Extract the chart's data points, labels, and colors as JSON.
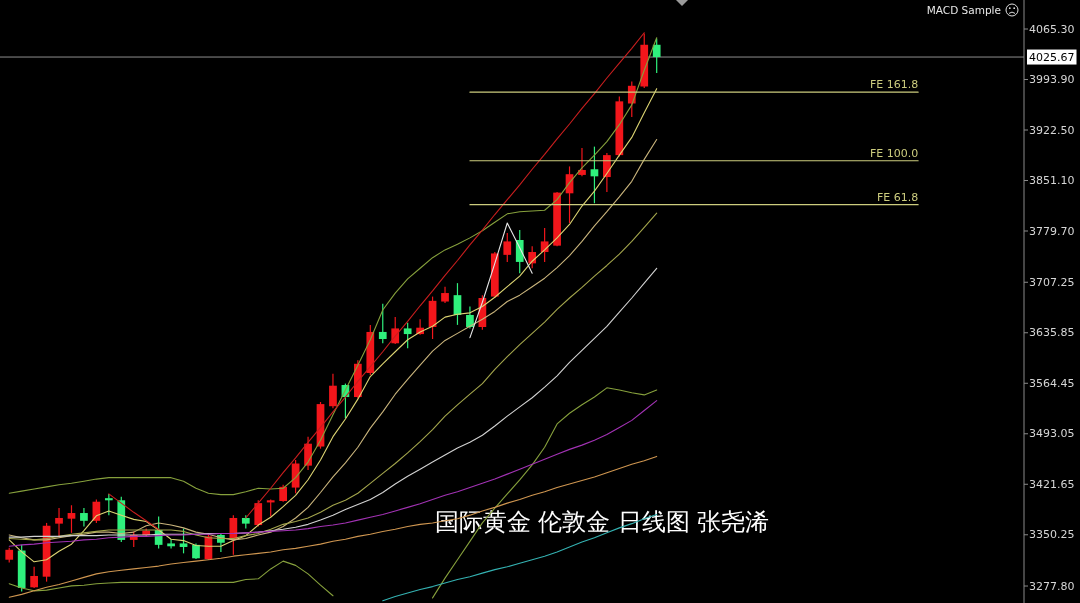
{
  "chart_data": {
    "type": "candlestick",
    "title": "国际黄金 伦敦金 日线图 张尧浠",
    "annotations": [
      "MACD Sample"
    ],
    "categories": [
      null,
      null,
      null,
      null,
      null,
      null,
      null,
      null,
      null,
      null,
      null,
      null,
      null,
      null,
      null,
      null,
      null,
      null,
      null,
      null,
      null,
      null,
      null,
      null,
      null,
      null,
      null,
      null,
      null,
      null,
      null,
      null,
      null,
      null,
      null,
      null,
      null,
      null,
      null,
      null,
      null,
      null,
      null,
      null,
      null,
      null,
      null,
      null,
      null,
      null,
      null,
      null,
      null,
      null,
      null,
      null,
      null,
      null,
      null,
      null,
      null,
      null,
      null,
      null,
      null,
      null,
      null,
      null,
      null,
      null,
      null,
      null,
      null,
      null,
      null,
      null,
      null,
      null,
      null,
      null,
      null,
      null
    ],
    "ohlc": [
      [
        3315,
        3332,
        3311,
        3329
      ],
      [
        3328,
        3336,
        3270,
        3275
      ],
      [
        3276,
        3305,
        3275,
        3292
      ],
      [
        3291,
        3367,
        3284,
        3363
      ],
      [
        3366,
        3388,
        3347,
        3374
      ],
      [
        3373,
        3392,
        3353,
        3381
      ],
      [
        3381,
        3388,
        3362,
        3370
      ],
      [
        3370,
        3400,
        3367,
        3397
      ],
      [
        3402,
        3408,
        3378,
        3399
      ],
      [
        3399,
        3404,
        3340,
        3343
      ],
      [
        3343,
        3355,
        3333,
        3350
      ],
      [
        3350,
        3359,
        3347,
        3356
      ],
      [
        3357,
        3376,
        3331,
        3336
      ],
      [
        3338,
        3344,
        3331,
        3334
      ],
      [
        3338,
        3359,
        3324,
        3333
      ],
      [
        3336,
        3338,
        3316,
        3317
      ],
      [
        3316,
        3352,
        3315,
        3348
      ],
      [
        3350,
        3352,
        3326,
        3339
      ],
      [
        3343,
        3378,
        3322,
        3374
      ],
      [
        3374,
        3378,
        3359,
        3366
      ],
      [
        3364,
        3399,
        3362,
        3395
      ],
      [
        3396,
        3400,
        3376,
        3399
      ],
      [
        3398,
        3421,
        3397,
        3418
      ],
      [
        3417,
        3456,
        3409,
        3451
      ],
      [
        3448,
        3489,
        3442,
        3479
      ],
      [
        3475,
        3538,
        3472,
        3535
      ],
      [
        3532,
        3578,
        3529,
        3561
      ],
      [
        3562,
        3564,
        3515,
        3545
      ],
      [
        3545,
        3597,
        3543,
        3592
      ],
      [
        3579,
        3647,
        3576,
        3637
      ],
      [
        3637,
        3677,
        3621,
        3627
      ],
      [
        3621,
        3658,
        3620,
        3642
      ],
      [
        3642,
        3650,
        3614,
        3634
      ],
      [
        3634,
        3655,
        3633,
        3643
      ],
      [
        3644,
        3687,
        3627,
        3681
      ],
      [
        3680,
        3701,
        3678,
        3692
      ],
      [
        3689,
        3706,
        3647,
        3661
      ],
      [
        3661,
        3673,
        3642,
        3644
      ],
      [
        3644,
        3689,
        3640,
        3685
      ],
      [
        3687,
        3750,
        3685,
        3748
      ],
      [
        3746,
        3777,
        3736,
        3765
      ],
      [
        3767,
        3781,
        3720,
        3736
      ],
      [
        3734,
        3758,
        3727,
        3750
      ],
      [
        3750,
        3784,
        3736,
        3765
      ],
      [
        3759,
        3835,
        3758,
        3834
      ],
      [
        3833,
        3871,
        3791,
        3860
      ],
      [
        3859,
        3897,
        3857,
        3866
      ],
      [
        3867,
        3899,
        3819,
        3857
      ],
      [
        3856,
        3890,
        3835,
        3887
      ],
      [
        3887,
        3970,
        3885,
        3963
      ],
      [
        3960,
        3991,
        3941,
        3985
      ],
      [
        3984,
        4059,
        3982,
        4043
      ],
      [
        4043,
        4052,
        4003,
        4025.67
      ],
      null,
      null,
      null,
      null,
      null,
      null,
      null,
      null,
      null,
      null,
      null,
      null,
      null,
      null,
      null,
      null,
      null,
      null,
      null,
      null,
      null,
      null,
      null,
      null,
      null,
      null,
      null,
      null,
      null
    ],
    "colors": [
      "#f2161b",
      "#2ff07c",
      "#f2161b",
      "#f2161b",
      "#f2161b",
      "#f2161b",
      "#2ff07c",
      "#f2161b",
      "#2ff07c",
      "#2ff07c",
      "#f2161b",
      "#f2161b",
      "#2ff07c",
      "#2ff07c",
      "#2ff07c",
      "#2ff07c",
      "#f2161b",
      "#2ff07c",
      "#f2161b",
      "#2ff07c",
      "#f2161b",
      "#f2161b",
      "#f2161b",
      "#f2161b",
      "#f2161b",
      "#f2161b",
      "#f2161b",
      "#2ff07c",
      "#f2161b",
      "#f2161b",
      "#2ff07c",
      "#f2161b",
      "#2ff07c",
      "#f2161b",
      "#f2161b",
      "#f2161b",
      "#2ff07c",
      "#2ff07c",
      "#f2161b",
      "#f2161b",
      "#f2161b",
      "#2ff07c",
      "#f2161b",
      "#f2161b",
      "#f2161b",
      "#f2161b",
      "#f2161b",
      "#2ff07c",
      "#f2161b",
      "#f2161b",
      "#f2161b",
      "#f2161b",
      "#2ff07c",
      null,
      null,
      null,
      null,
      null,
      null,
      null,
      null,
      null,
      null,
      null,
      null,
      null,
      null,
      null,
      null,
      null,
      null,
      null,
      null,
      null,
      null,
      null,
      null,
      null,
      null,
      null,
      null,
      null
    ],
    "series": [
      {
        "type": "line",
        "color": "#86a03c",
        "values": [
          3409,
          3412,
          3415,
          3418,
          3421,
          3423,
          3426,
          3429,
          3431,
          3431,
          3431,
          3431,
          3431,
          3431,
          3426,
          3416,
          3409,
          3407,
          3407,
          3411,
          3416,
          3415,
          3416,
          3431,
          3453,
          3484,
          3520,
          3555,
          3590,
          3626,
          3668,
          3692,
          3712,
          3727,
          3742,
          3753,
          3761,
          3770,
          3780,
          3792,
          3804,
          3807,
          3808,
          3809,
          3824,
          3848,
          3869,
          3887,
          3906,
          3930,
          3958,
          4007,
          4053,
          null,
          null,
          null,
          null,
          null,
          null,
          null,
          null,
          null,
          null,
          null,
          null,
          null,
          null,
          null,
          null,
          null,
          null,
          null,
          null,
          null,
          null,
          null,
          null,
          null,
          null,
          null,
          null,
          null
        ]
      },
      {
        "type": "line",
        "color": "#dcd472",
        "values": [
          3343,
          3326,
          3312,
          3315,
          3327,
          3337,
          3356,
          3377,
          3384,
          3378,
          3372,
          3369,
          3357,
          3344,
          3342,
          3335,
          3334,
          3334,
          3342,
          3349,
          3364,
          3375,
          3390,
          3406,
          3428,
          3456,
          3489,
          3514,
          3542,
          3574,
          3592,
          3609,
          3626,
          3637,
          3645,
          3658,
          3662,
          3664,
          3673,
          3686,
          3701,
          3716,
          3737,
          3753,
          3770,
          3789,
          3815,
          3836,
          3861,
          3887,
          3912,
          3947,
          3981,
          null,
          null,
          null,
          null,
          null,
          null,
          null,
          null,
          null,
          null,
          null,
          null,
          null,
          null,
          null,
          null,
          null,
          null,
          null,
          null,
          null,
          null,
          null,
          null,
          null,
          null,
          null,
          null,
          null
        ]
      },
      {
        "type": "line",
        "color": "#c9b47c",
        "values": [
          3350,
          3346,
          3343,
          3343,
          3346,
          3349,
          3351,
          3354,
          3354,
          3352,
          3354,
          3363,
          3367,
          3364,
          3360,
          3354,
          3351,
          3346,
          3343,
          3345,
          3350,
          3354,
          3362,
          3374,
          3389,
          3410,
          3432,
          3452,
          3474,
          3501,
          3524,
          3549,
          3570,
          3590,
          3610,
          3625,
          3635,
          3645,
          3655,
          3666,
          3680,
          3689,
          3701,
          3713,
          3728,
          3745,
          3765,
          3787,
          3807,
          3828,
          3850,
          3881,
          3909,
          null,
          null,
          null,
          null,
          null,
          null,
          null,
          null,
          null,
          null,
          null,
          null,
          null,
          null,
          null,
          null,
          null,
          null,
          null,
          null,
          null,
          null,
          null,
          null,
          null,
          null,
          null,
          null,
          null
        ]
      },
      {
        "type": "line",
        "color": "#a3a54c",
        "values": [
          3345,
          3344,
          3343,
          3345,
          3348,
          3351,
          3353,
          3355,
          3357,
          3357,
          3357,
          3357,
          3357,
          3357,
          3355,
          3350,
          3346,
          3345,
          3345,
          3349,
          3352,
          3358,
          3365,
          3369,
          3374,
          3382,
          3392,
          3399,
          3409,
          3423,
          3437,
          3451,
          3466,
          3482,
          3499,
          3518,
          3534,
          3549,
          3564,
          3584,
          3602,
          3619,
          3635,
          3651,
          3669,
          3685,
          3700,
          3716,
          3731,
          3747,
          3765,
          3785,
          3805,
          null,
          null,
          null,
          null,
          null,
          null,
          null,
          null,
          null,
          null,
          null,
          null,
          null,
          null,
          null,
          null,
          null,
          null,
          null,
          null,
          null,
          null,
          null,
          null,
          null,
          null,
          null,
          null,
          null
        ]
      },
      {
        "type": "line",
        "color": "#d2d2d2",
        "values": [
          3347,
          3347,
          3348,
          3348,
          3348,
          3349,
          3349,
          3349,
          3350,
          3350,
          3350,
          3350,
          3351,
          3351,
          3351,
          3351,
          3352,
          3352,
          3352,
          3353,
          3354,
          3356,
          3358,
          3361,
          3365,
          3371,
          3378,
          3386,
          3393,
          3400,
          3410,
          3422,
          3433,
          3443,
          3453,
          3463,
          3473,
          3481,
          3491,
          3504,
          3518,
          3531,
          3544,
          3559,
          3575,
          3594,
          3611,
          3628,
          3645,
          3665,
          3685,
          3706,
          3727,
          null,
          null,
          null,
          null,
          null,
          null,
          null,
          null,
          null,
          null,
          null,
          null,
          null,
          null,
          null,
          null,
          null,
          null,
          null,
          null,
          null,
          null,
          null,
          null,
          null,
          null,
          null,
          null,
          null
        ]
      },
      {
        "type": "line",
        "color": "#86a03c",
        "values": [
          3281,
          3275,
          3271,
          3272,
          3275,
          3278,
          3279,
          3281,
          3282,
          3283,
          3283,
          3283,
          3283,
          3283,
          3283,
          3283,
          3283,
          3283,
          3283,
          3287,
          3288,
          3302,
          3313,
          3307,
          3295,
          3279,
          3264,
          null,
          null,
          null,
          null,
          null,
          null,
          null,
          3261,
          3289,
          3315,
          3341,
          3367,
          3388,
          3408,
          3428,
          3449,
          3474,
          3507,
          3522,
          3534,
          3545,
          3558,
          3555,
          3551,
          3548,
          3555,
          null,
          null,
          null,
          null,
          null,
          null,
          null,
          null,
          null,
          null,
          null,
          null,
          null,
          null,
          null,
          null,
          null,
          null,
          null,
          null,
          null,
          null,
          null,
          null,
          null,
          null,
          null,
          null,
          null
        ]
      },
      {
        "type": "line",
        "color": "#a232b4",
        "values": [
          3334,
          3336,
          3337,
          3339,
          3340,
          3341,
          3343,
          3344,
          3346,
          3347,
          3348,
          3348,
          3349,
          3350,
          3350,
          3351,
          3351,
          3352,
          3352,
          3353,
          3354,
          3355,
          3356,
          3357,
          3359,
          3362,
          3364,
          3367,
          3371,
          3375,
          3379,
          3384,
          3389,
          3394,
          3400,
          3406,
          3411,
          3417,
          3423,
          3429,
          3436,
          3443,
          3450,
          3457,
          3464,
          3471,
          3477,
          3484,
          3492,
          3502,
          3512,
          3526,
          3540,
          null,
          null,
          null,
          null,
          null,
          null,
          null,
          null,
          null,
          null,
          null,
          null,
          null,
          null,
          null,
          null,
          null,
          null,
          null,
          null,
          null,
          null,
          null,
          null,
          null,
          null,
          null,
          null,
          null
        ]
      },
      {
        "type": "line",
        "color": "#cf9650",
        "values": [
          3262,
          3266,
          3271,
          3276,
          3280,
          3285,
          3290,
          3295,
          3298,
          3300,
          3302,
          3304,
          3306,
          3309,
          3311,
          3313,
          3315,
          3317,
          3320,
          3322,
          3324,
          3326,
          3329,
          3331,
          3334,
          3337,
          3341,
          3344,
          3348,
          3351,
          3355,
          3358,
          3362,
          3365,
          3367,
          3370,
          3373,
          3378,
          3384,
          3389,
          3395,
          3400,
          3406,
          3411,
          3417,
          3422,
          3427,
          3432,
          3438,
          3444,
          3450,
          3455,
          3461,
          null,
          null,
          null,
          null,
          null,
          null,
          null,
          null,
          null,
          null,
          null,
          null,
          null,
          null,
          null,
          null,
          null,
          null,
          null,
          null,
          null,
          null,
          null,
          null,
          null,
          null,
          null,
          null,
          null
        ]
      },
      {
        "type": "line",
        "color": "#34b2b2",
        "values": [
          null,
          null,
          null,
          null,
          null,
          null,
          null,
          null,
          null,
          null,
          null,
          null,
          null,
          null,
          null,
          null,
          null,
          null,
          null,
          null,
          null,
          null,
          null,
          null,
          null,
          null,
          null,
          null,
          null,
          null,
          3257,
          3263,
          3268,
          3273,
          3277,
          3282,
          3287,
          3291,
          3296,
          3301,
          3305,
          3310,
          3315,
          3320,
          3326,
          3333,
          3340,
          3346,
          3353,
          3360,
          3366,
          3373,
          3379,
          null,
          null,
          null,
          null,
          null,
          null,
          null,
          null,
          null,
          null,
          null,
          null,
          null,
          null,
          null,
          null,
          null,
          null,
          null,
          null,
          null,
          null,
          null,
          null,
          null,
          null,
          null,
          null,
          null
        ]
      },
      {
        "type": "line",
        "color": "#c81e1e",
        "values": [
          null,
          null,
          null,
          null,
          null,
          null,
          null,
          null,
          null,
          null,
          null,
          null,
          null,
          null,
          null,
          null,
          null,
          null,
          null,
          3374,
          3395,
          3416,
          3438,
          3459,
          3481,
          3502,
          3524,
          3545,
          3567,
          3588,
          3609,
          3631,
          3652,
          3674,
          3695,
          3717,
          3738,
          3760,
          3781,
          3803,
          3824,
          3845,
          3867,
          3888,
          3910,
          3931,
          3953,
          3974,
          3996,
          4017,
          4038,
          4060,
          null,
          null,
          null,
          null,
          null,
          null,
          null,
          null,
          null,
          null,
          null,
          null,
          null,
          null,
          null,
          null,
          null,
          null,
          null,
          null,
          null,
          null,
          null,
          null,
          null,
          null,
          null,
          null,
          null,
          null
        ]
      },
      {
        "type": "line",
        "color": "#c81e1e",
        "values": [
          null,
          null,
          null,
          null,
          null,
          null,
          null,
          null,
          3408,
          3395,
          3382,
          3370,
          3358,
          null,
          null,
          null,
          null,
          null,
          null,
          null,
          null,
          null,
          null,
          null,
          null,
          null,
          null,
          null,
          null,
          null,
          null,
          null,
          null,
          null,
          null,
          null,
          null,
          null,
          null,
          null,
          null,
          null,
          null,
          null,
          null,
          null,
          null,
          null,
          null,
          null,
          null,
          null,
          null,
          null,
          null,
          null,
          null,
          null,
          null,
          null,
          null,
          null,
          null,
          null,
          null,
          null,
          null,
          null,
          null,
          null,
          null,
          null,
          null,
          null,
          null,
          null,
          null,
          null,
          null,
          null,
          null,
          null
        ]
      },
      {
        "type": "line",
        "color": "#e6e6e6",
        "values": [
          null,
          null,
          null,
          null,
          null,
          null,
          null,
          null,
          null,
          null,
          null,
          null,
          null,
          null,
          null,
          null,
          null,
          null,
          null,
          null,
          null,
          null,
          null,
          null,
          null,
          null,
          null,
          null,
          null,
          null,
          null,
          null,
          null,
          null,
          null,
          null,
          null,
          3629,
          3679,
          3734,
          3791,
          3756,
          3720,
          null,
          null,
          null,
          null,
          null,
          null,
          null,
          null,
          null,
          null,
          null,
          null,
          null,
          null,
          null,
          null,
          null,
          null,
          null,
          null,
          null,
          null,
          null,
          null,
          null,
          null,
          null,
          null,
          null,
          null,
          null,
          null,
          null,
          null,
          null,
          null,
          null,
          null,
          null
        ]
      },
      {
        "type": "line",
        "name": "FE 161.8",
        "color": "#cccc7e",
        "values": [
          null,
          null,
          null,
          null,
          null,
          null,
          null,
          null,
          null,
          null,
          null,
          null,
          null,
          null,
          null,
          null,
          null,
          null,
          null,
          null,
          null,
          null,
          null,
          null,
          null,
          null,
          null,
          null,
          null,
          null,
          null,
          null,
          null,
          null,
          null,
          null,
          null,
          3976,
          3976,
          3976,
          3976,
          3976,
          3976,
          3976,
          3976,
          3976,
          3976,
          3976,
          3976,
          3976,
          3976,
          3976,
          3976,
          3976,
          3976,
          3976,
          3976,
          3976,
          3976,
          3976,
          3976,
          3976,
          3976,
          3976,
          3976,
          3976,
          3976,
          3976,
          3976,
          3976,
          3976,
          3976,
          3976,
          3976,
          null,
          null,
          null,
          null,
          null,
          null,
          null,
          null
        ]
      },
      {
        "type": "line",
        "name": "FE 100.0",
        "color": "#cccc7e",
        "values": [
          null,
          null,
          null,
          null,
          null,
          null,
          null,
          null,
          null,
          null,
          null,
          null,
          null,
          null,
          null,
          null,
          null,
          null,
          null,
          null,
          null,
          null,
          null,
          null,
          null,
          null,
          null,
          null,
          null,
          null,
          null,
          null,
          null,
          null,
          null,
          null,
          null,
          3879,
          3879,
          3879,
          3879,
          3879,
          3879,
          3879,
          3879,
          3879,
          3879,
          3879,
          3879,
          3879,
          3879,
          3879,
          3879,
          3879,
          3879,
          3879,
          3879,
          3879,
          3879,
          3879,
          3879,
          3879,
          3879,
          3879,
          3879,
          3879,
          3879,
          3879,
          3879,
          3879,
          3879,
          3879,
          3879,
          3879,
          null,
          null,
          null,
          null,
          null,
          null,
          null,
          null
        ]
      },
      {
        "type": "line",
        "name": "FE 61.8",
        "color": "#cccc7e",
        "values": [
          null,
          null,
          null,
          null,
          null,
          null,
          null,
          null,
          null,
          null,
          null,
          null,
          null,
          null,
          null,
          null,
          null,
          null,
          null,
          null,
          null,
          null,
          null,
          null,
          null,
          null,
          null,
          null,
          null,
          null,
          null,
          null,
          null,
          null,
          null,
          null,
          null,
          3817,
          3817,
          3817,
          3817,
          3817,
          3817,
          3817,
          3817,
          3817,
          3817,
          3817,
          3817,
          3817,
          3817,
          3817,
          3817,
          3817,
          3817,
          3817,
          3817,
          3817,
          3817,
          3817,
          3817,
          3817,
          3817,
          3817,
          3817,
          3817,
          3817,
          3817,
          3817,
          3817,
          3817,
          3817,
          3817,
          3817,
          null,
          null,
          null,
          null,
          null,
          null,
          null,
          null
        ]
      }
    ],
    "ref_lines": [
      {
        "axis": "y",
        "value": 4025.67,
        "label": "4025.67",
        "color": "#8e8e8e"
      }
    ],
    "ylim": [
      3253.8,
      4106.3
    ],
    "yticks": [
      {
        "value": 4065.3,
        "label": "4065.30"
      },
      {
        "value": 3993.9,
        "label": "3993.90"
      },
      {
        "value": 3922.5,
        "label": "3922.50"
      },
      {
        "value": 3851.1,
        "label": "3851.10"
      },
      {
        "value": 3779.7,
        "label": "3779.70"
      },
      3707.25,
      3635.85,
      3564.45,
      3493.05,
      3421.65,
      3350.25,
      {
        "value": 3277.8,
        "label": "3277.80"
      }
    ],
    "tick_labels": "y",
    "grid": false,
    "legend": false
  }
}
